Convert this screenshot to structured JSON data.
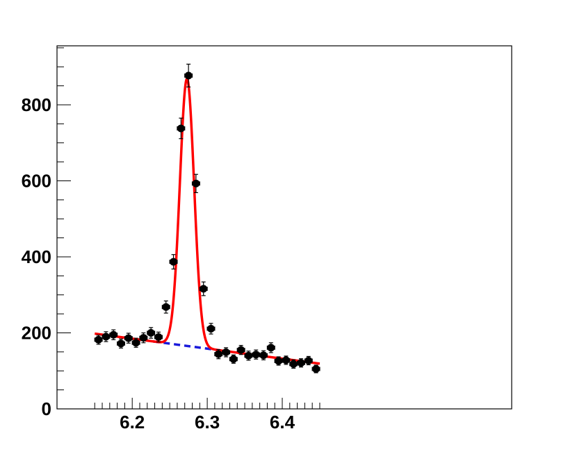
{
  "chart_data": {
    "type": "scatter",
    "title": "",
    "xlabel": "",
    "ylabel": "",
    "xlim": [
      6.15,
      6.45
    ],
    "ylim": [
      0,
      950
    ],
    "grid": false,
    "x_ticks": [
      6.2,
      6.3,
      6.4
    ],
    "x_tick_labels": [
      "6.2",
      "6.3",
      "6.4"
    ],
    "y_ticks": [
      0,
      200,
      400,
      600,
      800
    ],
    "y_tick_labels": [
      "0",
      "200",
      "400",
      "600",
      "800"
    ],
    "bin_half_width": 0.005,
    "points": [
      {
        "x": 6.155,
        "y": 182,
        "err": 12
      },
      {
        "x": 6.165,
        "y": 190,
        "err": 13
      },
      {
        "x": 6.175,
        "y": 195,
        "err": 13
      },
      {
        "x": 6.185,
        "y": 172,
        "err": 12
      },
      {
        "x": 6.195,
        "y": 186,
        "err": 13
      },
      {
        "x": 6.205,
        "y": 174,
        "err": 12
      },
      {
        "x": 6.215,
        "y": 187,
        "err": 13
      },
      {
        "x": 6.225,
        "y": 200,
        "err": 14
      },
      {
        "x": 6.235,
        "y": 189,
        "err": 13
      },
      {
        "x": 6.245,
        "y": 268,
        "err": 16
      },
      {
        "x": 6.255,
        "y": 387,
        "err": 19
      },
      {
        "x": 6.265,
        "y": 738,
        "err": 27
      },
      {
        "x": 6.275,
        "y": 877,
        "err": 30
      },
      {
        "x": 6.285,
        "y": 593,
        "err": 24
      },
      {
        "x": 6.295,
        "y": 316,
        "err": 18
      },
      {
        "x": 6.305,
        "y": 211,
        "err": 14
      },
      {
        "x": 6.315,
        "y": 144,
        "err": 12
      },
      {
        "x": 6.325,
        "y": 149,
        "err": 12
      },
      {
        "x": 6.335,
        "y": 131,
        "err": 11
      },
      {
        "x": 6.345,
        "y": 155,
        "err": 12
      },
      {
        "x": 6.355,
        "y": 140,
        "err": 12
      },
      {
        "x": 6.365,
        "y": 143,
        "err": 12
      },
      {
        "x": 6.375,
        "y": 141,
        "err": 12
      },
      {
        "x": 6.385,
        "y": 161,
        "err": 13
      },
      {
        "x": 6.395,
        "y": 126,
        "err": 11
      },
      {
        "x": 6.405,
        "y": 128,
        "err": 11
      },
      {
        "x": 6.415,
        "y": 118,
        "err": 11
      },
      {
        "x": 6.425,
        "y": 121,
        "err": 11
      },
      {
        "x": 6.435,
        "y": 127,
        "err": 11
      },
      {
        "x": 6.445,
        "y": 105,
        "err": 10
      }
    ],
    "fit": {
      "color": "#ff0000",
      "background_start": 198,
      "background_end": 119,
      "peak_mean": 6.273,
      "peak_sigma": 0.0095,
      "peak_amplitude": 703
    },
    "background": {
      "color": "#1a1adb",
      "style": "dashed"
    }
  }
}
